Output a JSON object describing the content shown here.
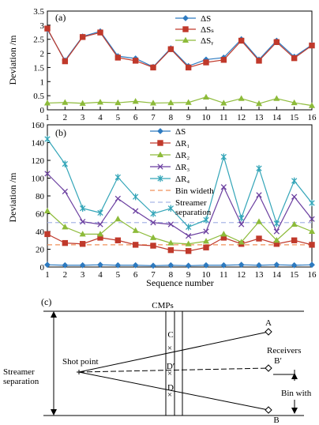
{
  "chart_data": [
    {
      "type": "line",
      "panel_label": "(a)",
      "x": [
        1,
        2,
        3,
        4,
        5,
        6,
        7,
        8,
        9,
        10,
        11,
        12,
        13,
        14,
        15,
        16
      ],
      "ylabel": "Deviation /m",
      "xlabel": "",
      "ylim": [
        0,
        3.5
      ],
      "yticks": [
        "0",
        "0.5",
        "1",
        "1.5",
        "2",
        "2.5",
        "3",
        "3.5"
      ],
      "series": [
        {
          "name": "ΔS",
          "color": "#2e7bc1",
          "marker": "diamond",
          "values": [
            2.85,
            1.75,
            2.6,
            2.78,
            1.9,
            1.82,
            1.52,
            2.18,
            1.55,
            1.78,
            1.85,
            2.5,
            1.78,
            2.45,
            1.88,
            2.3
          ]
        },
        {
          "name": "ΔSₛ",
          "color": "#c0392b",
          "marker": "square",
          "values": [
            2.88,
            1.72,
            2.58,
            2.74,
            1.85,
            1.74,
            1.5,
            2.15,
            1.5,
            1.68,
            1.77,
            2.45,
            1.74,
            2.4,
            1.83,
            2.28
          ]
        },
        {
          "name": "ΔSᵧ",
          "color": "#8dbb3a",
          "marker": "triangle",
          "values": [
            0.24,
            0.26,
            0.23,
            0.27,
            0.25,
            0.3,
            0.24,
            0.25,
            0.26,
            0.45,
            0.24,
            0.4,
            0.22,
            0.4,
            0.25,
            0.15
          ]
        }
      ]
    },
    {
      "type": "line",
      "panel_label": "(b)",
      "x": [
        1,
        2,
        3,
        4,
        5,
        6,
        7,
        8,
        9,
        10,
        11,
        12,
        13,
        14,
        15,
        16
      ],
      "ylabel": "Deviation /m",
      "xlabel": "Sequence number",
      "ylim": [
        0,
        160
      ],
      "yticks": [
        "0",
        "20",
        "40",
        "60",
        "80",
        "100",
        "120",
        "140",
        "160"
      ],
      "xticks": [
        "1",
        "2",
        "3",
        "4",
        "5",
        "6",
        "7",
        "8",
        "9",
        "10",
        "11",
        "12",
        "13",
        "14",
        "15",
        "16"
      ],
      "series": [
        {
          "name": "ΔS",
          "color": "#2e7bc1",
          "marker": "diamond",
          "values": [
            2.5,
            2,
            2,
            2.5,
            2,
            2,
            1.5,
            2,
            1.5,
            2,
            2,
            2.5,
            2,
            2.5,
            2,
            2.5
          ]
        },
        {
          "name": "ΔR₁",
          "color": "#c0392b",
          "marker": "square",
          "values": [
            37,
            27,
            26,
            33,
            30,
            25,
            24,
            19,
            18,
            22,
            33,
            26,
            32,
            26,
            30,
            25
          ]
        },
        {
          "name": "ΔR₂",
          "color": "#8dbb3a",
          "marker": "triangle",
          "values": [
            63,
            45,
            37,
            37,
            54,
            41,
            33,
            27,
            26,
            29,
            37,
            28,
            51,
            30,
            48,
            40
          ]
        },
        {
          "name": "ΔR₃",
          "color": "#6b3fa0",
          "marker": "x",
          "values": [
            105,
            85,
            51,
            48,
            77,
            63,
            50,
            48,
            35,
            40,
            90,
            48,
            81,
            40,
            79,
            54
          ]
        },
        {
          "name": "ΔR₄",
          "color": "#33a5b8",
          "marker": "star",
          "values": [
            144,
            116,
            66,
            61,
            101,
            79,
            60,
            66,
            45,
            53,
            124,
            55,
            111,
            49,
            97,
            72
          ]
        }
      ],
      "reference_lines": [
        {
          "name": "Bin wideth",
          "value": 25,
          "color": "#f0915a"
        },
        {
          "name": "Streamer separation",
          "value": 50,
          "color": "#a9b8e6"
        }
      ]
    }
  ],
  "schematic": {
    "panel_label": "(c)",
    "cmps_label": "CMPs",
    "shot_point_label": "Shot point",
    "receivers_label": "Receivers",
    "streamer_separation_label": "Streamer separation",
    "bin_width_label": "Bin with",
    "points": {
      "A": "A",
      "B": "B",
      "B_prime": "B′",
      "C": "C",
      "D": "D",
      "D_prime": "D′"
    }
  }
}
